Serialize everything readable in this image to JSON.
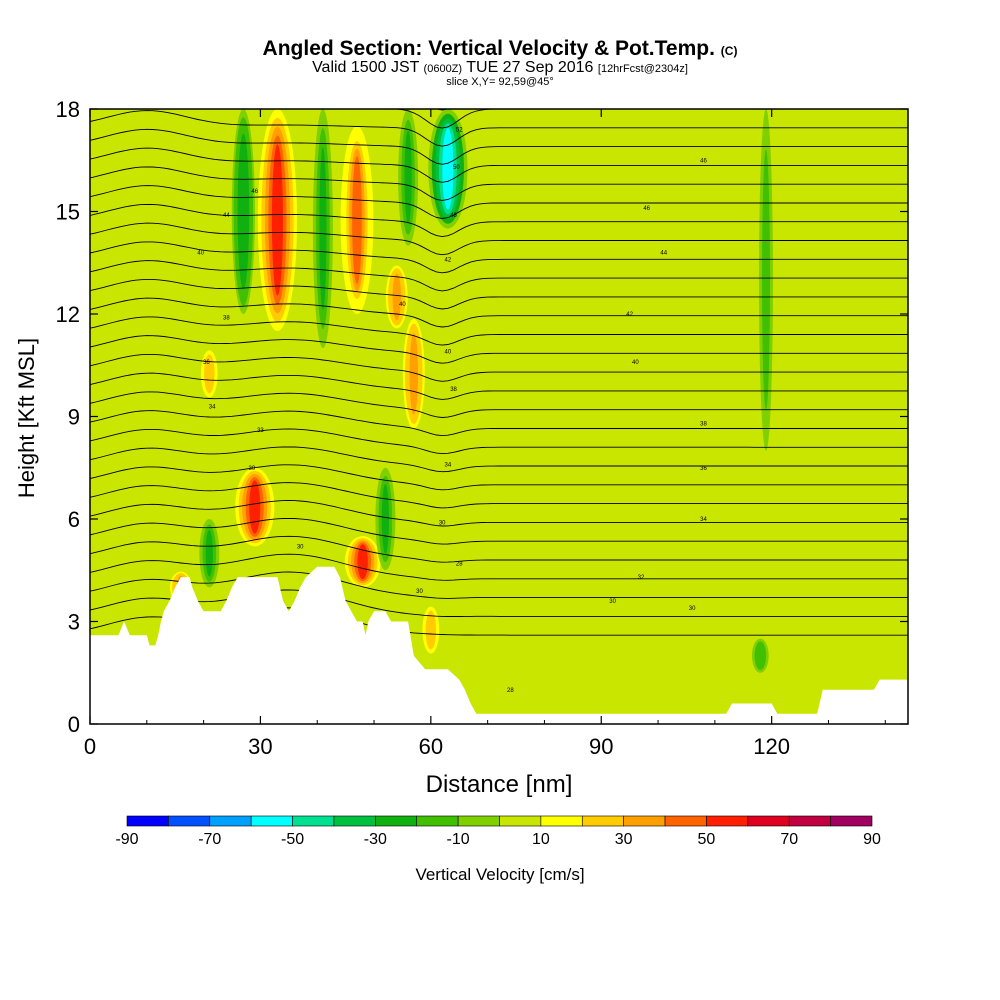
{
  "title": {
    "main": "Angled Section: Vertical Velocity & Pot.Temp.",
    "main_suffix": "(C)",
    "valid_prefix": "Valid 1500 JST",
    "valid_utc": "(0600Z)",
    "valid_date": "TUE 27 Sep 2016",
    "valid_fcst": "[12hrFcst@2304z]",
    "slice": "slice X,Y= 92,59@45°"
  },
  "chart_data": {
    "type": "heatmap",
    "xlabel": "Distance [nm]",
    "ylabel": "Height [Kft MSL]",
    "xlim": [
      0,
      144
    ],
    "ylim": [
      0,
      18
    ],
    "x_ticks": [
      0,
      30,
      60,
      90,
      120
    ],
    "y_ticks": [
      0,
      3,
      6,
      9,
      12,
      15,
      18
    ],
    "x_tick_labels": [
      "0",
      "30",
      "60",
      "90",
      "120"
    ],
    "y_tick_labels": [
      "0",
      "3",
      "6",
      "9",
      "12",
      "15",
      "18"
    ],
    "colorbar": {
      "label": "Vertical Velocity [cm/s]",
      "tick_labels": [
        "-90",
        "-70",
        "-50",
        "-30",
        "-10",
        "10",
        "30",
        "50",
        "70",
        "90"
      ],
      "boundaries": [
        -90,
        -80,
        -70,
        -60,
        -50,
        -40,
        -30,
        -20,
        -10,
        0,
        10,
        20,
        30,
        40,
        50,
        60,
        70,
        80,
        90
      ],
      "colors": [
        "#0000ff",
        "#0050ff",
        "#00a0ff",
        "#00ffff",
        "#00e090",
        "#00c040",
        "#10b010",
        "#40c000",
        "#80d000",
        "#c8e600",
        "#ffff00",
        "#ffcc00",
        "#ffa000",
        "#ff6400",
        "#ff2000",
        "#e00020",
        "#c00040",
        "#a00060",
        "#800080"
      ]
    },
    "background_velocity": 2,
    "updrafts": [
      {
        "x": 33,
        "y_min": 11.5,
        "y_max": 18,
        "velocity": 55
      },
      {
        "x": 29,
        "y_min": 5.2,
        "y_max": 7.5,
        "velocity": 55
      },
      {
        "x": 48,
        "y_min": 4.0,
        "y_max": 5.5,
        "velocity": 50
      },
      {
        "x": 47,
        "y_min": 12.0,
        "y_max": 17.5,
        "velocity": 45
      },
      {
        "x": 57,
        "y_min": 8.5,
        "y_max": 12.0,
        "velocity": 35
      },
      {
        "x": 54,
        "y_min": 11.5,
        "y_max": 13.5,
        "velocity": 35
      },
      {
        "x": 60,
        "y_min": 2.0,
        "y_max": 3.5,
        "velocity": 25
      },
      {
        "x": 21,
        "y_min": 9.5,
        "y_max": 11.0,
        "velocity": 25
      },
      {
        "x": 16,
        "y_min": 3.5,
        "y_max": 4.5,
        "velocity": 35
      },
      {
        "x": 62,
        "y_min": 15.0,
        "y_max": 18,
        "velocity": 25
      }
    ],
    "downdrafts": [
      {
        "x": 63,
        "y_min": 14.5,
        "y_max": 18,
        "velocity": -55
      },
      {
        "x": 27,
        "y_min": 12.0,
        "y_max": 18,
        "velocity": -30
      },
      {
        "x": 41,
        "y_min": 11.0,
        "y_max": 18,
        "velocity": -25
      },
      {
        "x": 56,
        "y_min": 14.0,
        "y_max": 18,
        "velocity": -25
      },
      {
        "x": 52,
        "y_min": 4.5,
        "y_max": 7.5,
        "velocity": -25
      },
      {
        "x": 21,
        "y_min": 4.0,
        "y_max": 6.0,
        "velocity": -25
      },
      {
        "x": 118,
        "y_min": 1.5,
        "y_max": 2.5,
        "velocity": -20
      },
      {
        "x": 119,
        "y_min": 8.0,
        "y_max": 18,
        "velocity": -15
      }
    ],
    "terrain_kft": [
      [
        0,
        2.6
      ],
      [
        5,
        2.6
      ],
      [
        6,
        3.0
      ],
      [
        7,
        2.6
      ],
      [
        10,
        2.6
      ],
      [
        10.5,
        2.3
      ],
      [
        11.5,
        2.3
      ],
      [
        12,
        2.6
      ],
      [
        12.5,
        3.0
      ],
      [
        13,
        3.3
      ],
      [
        14,
        3.6
      ],
      [
        15,
        4.0
      ],
      [
        16,
        4.3
      ],
      [
        17.5,
        4.3
      ],
      [
        18,
        4.0
      ],
      [
        19,
        3.6
      ],
      [
        20,
        3.3
      ],
      [
        23,
        3.3
      ],
      [
        24,
        3.6
      ],
      [
        25,
        4.0
      ],
      [
        26,
        4.3
      ],
      [
        33,
        4.3
      ],
      [
        34,
        3.6
      ],
      [
        35,
        3.3
      ],
      [
        36,
        3.6
      ],
      [
        37,
        4.0
      ],
      [
        38,
        4.3
      ],
      [
        40,
        4.6
      ],
      [
        43,
        4.6
      ],
      [
        44,
        4.3
      ],
      [
        45,
        3.6
      ],
      [
        46,
        3.3
      ],
      [
        47,
        3.0
      ],
      [
        48,
        3.0
      ],
      [
        48.5,
        2.6
      ],
      [
        49,
        3.0
      ],
      [
        50,
        3.3
      ],
      [
        52,
        3.3
      ],
      [
        53,
        3.0
      ],
      [
        56,
        3.0
      ],
      [
        57,
        2.0
      ],
      [
        59,
        1.6
      ],
      [
        63,
        1.6
      ],
      [
        65,
        1.3
      ],
      [
        66,
        1.0
      ],
      [
        67,
        0.6
      ],
      [
        68,
        0.3
      ],
      [
        112,
        0.3
      ],
      [
        113,
        0.6
      ],
      [
        120,
        0.6
      ],
      [
        121,
        0.3
      ],
      [
        128,
        0.3
      ],
      [
        129,
        1.0
      ],
      [
        138,
        1.0
      ],
      [
        139,
        1.3
      ],
      [
        144,
        1.3
      ]
    ],
    "isentrope_labels": [
      {
        "text": "52",
        "x": 65,
        "y": 17.4
      },
      {
        "text": "50",
        "x": 64.5,
        "y": 16.3
      },
      {
        "text": "46",
        "x": 29,
        "y": 15.6
      },
      {
        "text": "46",
        "x": 108,
        "y": 16.5
      },
      {
        "text": "44",
        "x": 24,
        "y": 14.9
      },
      {
        "text": "48",
        "x": 64,
        "y": 14.9
      },
      {
        "text": "46",
        "x": 98,
        "y": 15.1
      },
      {
        "text": "40",
        "x": 19.5,
        "y": 13.8
      },
      {
        "text": "42",
        "x": 63,
        "y": 13.6
      },
      {
        "text": "44",
        "x": 101,
        "y": 13.8
      },
      {
        "text": "40",
        "x": 55,
        "y": 12.3
      },
      {
        "text": "38",
        "x": 24,
        "y": 11.9
      },
      {
        "text": "42",
        "x": 95,
        "y": 12.0
      },
      {
        "text": "40",
        "x": 63,
        "y": 10.9
      },
      {
        "text": "36",
        "x": 20.5,
        "y": 10.6
      },
      {
        "text": "40",
        "x": 96,
        "y": 10.6
      },
      {
        "text": "38",
        "x": 64,
        "y": 9.8
      },
      {
        "text": "34",
        "x": 21.5,
        "y": 9.3
      },
      {
        "text": "33",
        "x": 30,
        "y": 8.6
      },
      {
        "text": "38",
        "x": 108,
        "y": 8.8
      },
      {
        "text": "34",
        "x": 63,
        "y": 7.6
      },
      {
        "text": "30",
        "x": 28.5,
        "y": 7.5
      },
      {
        "text": "36",
        "x": 108,
        "y": 7.5
      },
      {
        "text": "30",
        "x": 62,
        "y": 5.9
      },
      {
        "text": "34",
        "x": 108,
        "y": 6.0
      },
      {
        "text": "30",
        "x": 37,
        "y": 5.2
      },
      {
        "text": "28",
        "x": 65,
        "y": 4.7
      },
      {
        "text": "32",
        "x": 97,
        "y": 4.3
      },
      {
        "text": "30",
        "x": 58,
        "y": 3.9
      },
      {
        "text": "30",
        "x": 92,
        "y": 3.6
      },
      {
        "text": "30",
        "x": 106,
        "y": 3.4
      },
      {
        "text": "28",
        "x": 74,
        "y": 1.0
      }
    ]
  }
}
